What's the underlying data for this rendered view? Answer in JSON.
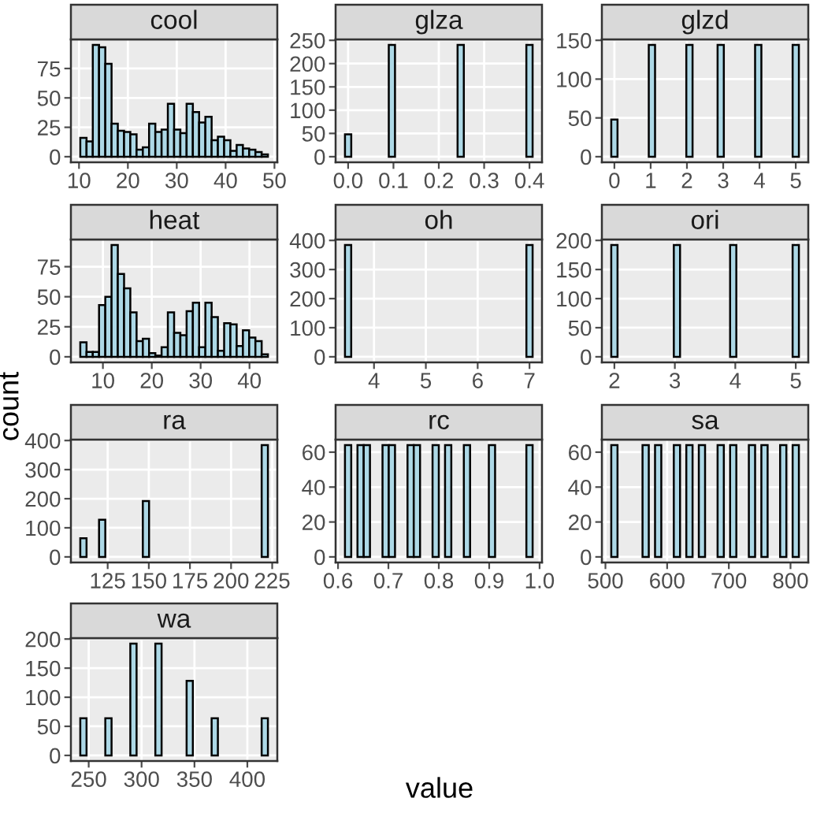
{
  "chart_data": [
    {
      "type": "histogram",
      "title": "cool",
      "color": "#add8e6",
      "grid": true,
      "bins": [
        10.26,
        11.54,
        12.82,
        14.1,
        15.38,
        16.66,
        17.94,
        19.22,
        20.5,
        21.78,
        23.06,
        24.34,
        25.62,
        26.9,
        28.18,
        29.46,
        30.74,
        32.02,
        33.3,
        34.58,
        35.86,
        37.14,
        38.42,
        39.7,
        40.98,
        42.26,
        43.54,
        44.82,
        46.1,
        47.38,
        48.66
      ],
      "values": [
        16,
        13,
        95,
        93,
        79,
        28,
        22,
        21,
        19,
        6,
        8,
        28,
        21,
        23,
        45,
        23,
        20,
        45,
        38,
        29,
        34,
        14,
        17,
        14,
        5,
        10,
        7,
        6,
        4,
        2
      ],
      "xlim": [
        8.34,
        50.58
      ],
      "xticks": [
        10,
        20,
        30,
        40,
        50
      ],
      "ylim": [
        -4.75,
        99.75
      ],
      "yticks": [
        0,
        25,
        50,
        75
      ]
    },
    {
      "type": "histogram",
      "title": "glza",
      "color": "#add8e6",
      "grid": true,
      "bins": [
        -0.0069,
        0.0069,
        0.0207,
        0.0345,
        0.0483,
        0.0621,
        0.0759,
        0.0897,
        0.1034,
        0.1172,
        0.131,
        0.1448,
        0.1586,
        0.1724,
        0.1862,
        0.2,
        0.2138,
        0.2276,
        0.2414,
        0.2552,
        0.269,
        0.2828,
        0.2966,
        0.3103,
        0.3241,
        0.3379,
        0.3517,
        0.3655,
        0.3793,
        0.3931,
        0.4069
      ],
      "values": [
        48,
        0,
        0,
        0,
        0,
        0,
        0,
        240,
        0,
        0,
        0,
        0,
        0,
        0,
        0,
        0,
        0,
        0,
        240,
        0,
        0,
        0,
        0,
        0,
        0,
        0,
        0,
        0,
        0,
        240
      ],
      "xlim": [
        -0.0276,
        0.4276
      ],
      "xticks": [
        {
          "value": 0,
          "label": "0.0"
        },
        0.1,
        0.2,
        0.3,
        0.4
      ],
      "ylim": [
        -12,
        252
      ],
      "yticks": [
        0,
        50,
        100,
        150,
        200,
        250
      ]
    },
    {
      "type": "histogram",
      "title": "glzd",
      "color": "#add8e6",
      "grid": true,
      "bins": [
        -0.086,
        0.086,
        0.259,
        0.431,
        0.603,
        0.776,
        0.948,
        1.121,
        1.293,
        1.466,
        1.638,
        1.81,
        1.983,
        2.155,
        2.328,
        2.5,
        2.672,
        2.845,
        3.017,
        3.19,
        3.362,
        3.534,
        3.707,
        3.879,
        4.052,
        4.224,
        4.397,
        4.569,
        4.741,
        4.914,
        5.086
      ],
      "values": [
        48,
        0,
        0,
        0,
        0,
        0,
        144,
        0,
        0,
        0,
        0,
        0,
        144,
        0,
        0,
        0,
        0,
        144,
        0,
        0,
        0,
        0,
        0,
        144,
        0,
        0,
        0,
        0,
        0,
        144
      ],
      "xlim": [
        -0.345,
        5.345
      ],
      "xticks": [
        0,
        1,
        2,
        3,
        4,
        5
      ],
      "ylim": [
        -7.2,
        151.2
      ],
      "yticks": [
        0,
        50,
        100,
        150
      ]
    },
    {
      "type": "histogram",
      "title": "heat",
      "ylabel": "count",
      "color": "#add8e6",
      "grid": true,
      "bins": [
        5.37,
        6.65,
        7.93,
        9.21,
        10.49,
        11.77,
        13.05,
        14.33,
        15.61,
        16.89,
        18.17,
        19.45,
        20.73,
        22.01,
        23.29,
        24.57,
        25.85,
        27.13,
        28.41,
        29.69,
        30.97,
        32.25,
        33.53,
        34.81,
        36.09,
        37.37,
        38.65,
        39.93,
        41.21,
        42.49,
        43.77
      ],
      "values": [
        12,
        4,
        4,
        43,
        50,
        93,
        69,
        57,
        37,
        13,
        15,
        3,
        1,
        8,
        37,
        20,
        18,
        38,
        45,
        8,
        45,
        33,
        5,
        28,
        27,
        9,
        22,
        16,
        13,
        2
      ],
      "xlim": [
        3.45,
        45.69
      ],
      "xticks": [
        10,
        20,
        30,
        40
      ],
      "ylim": [
        -4.65,
        97.65
      ],
      "yticks": [
        0,
        25,
        50,
        75
      ]
    },
    {
      "type": "histogram",
      "title": "oh",
      "color": "#add8e6",
      "grid": true,
      "bins": [
        3.44,
        3.56,
        3.681,
        3.802,
        3.922,
        4.043,
        4.164,
        4.284,
        4.405,
        4.526,
        4.647,
        4.767,
        4.888,
        5.009,
        5.129,
        5.25,
        5.371,
        5.491,
        5.612,
        5.733,
        5.853,
        5.974,
        6.095,
        6.216,
        6.336,
        6.457,
        6.578,
        6.698,
        6.819,
        6.94,
        7.06
      ],
      "values": [
        384,
        0,
        0,
        0,
        0,
        0,
        0,
        0,
        0,
        0,
        0,
        0,
        0,
        0,
        0,
        0,
        0,
        0,
        0,
        0,
        0,
        0,
        0,
        0,
        0,
        0,
        0,
        0,
        0,
        384
      ],
      "xlim": [
        3.259,
        7.241
      ],
      "xticks": [
        4,
        5,
        6,
        7
      ],
      "ylim": [
        -19.2,
        403.2
      ],
      "yticks": [
        0,
        100,
        200,
        300,
        400
      ]
    },
    {
      "type": "histogram",
      "title": "ori",
      "color": "#add8e6",
      "grid": true,
      "bins": [
        1.948,
        2.052,
        2.155,
        2.259,
        2.362,
        2.466,
        2.569,
        2.672,
        2.776,
        2.879,
        2.983,
        3.086,
        3.19,
        3.293,
        3.397,
        3.5,
        3.603,
        3.707,
        3.81,
        3.914,
        4.017,
        4.121,
        4.224,
        4.328,
        4.431,
        4.534,
        4.638,
        4.741,
        4.845,
        4.948,
        5.052
      ],
      "values": [
        192,
        0,
        0,
        0,
        0,
        0,
        0,
        0,
        0,
        0,
        192,
        0,
        0,
        0,
        0,
        0,
        0,
        0,
        0,
        192,
        0,
        0,
        0,
        0,
        0,
        0,
        0,
        0,
        0,
        192
      ],
      "xlim": [
        1.793,
        5.207
      ],
      "xticks": [
        2,
        3,
        4,
        5
      ],
      "ylim": [
        -9.6,
        201.6
      ],
      "yticks": [
        0,
        50,
        100,
        150,
        200
      ]
    },
    {
      "type": "histogram",
      "title": "ra",
      "color": "#add8e6",
      "grid": true,
      "bins": [
        108.35,
        112.15,
        115.95,
        119.75,
        123.56,
        127.36,
        131.16,
        134.96,
        138.76,
        142.56,
        146.36,
        150.16,
        153.97,
        157.77,
        161.57,
        165.38,
        169.18,
        172.98,
        176.78,
        180.58,
        184.38,
        188.19,
        191.99,
        195.79,
        199.59,
        203.39,
        207.19,
        210.99,
        214.79,
        218.6,
        222.4
      ],
      "values": [
        64,
        0,
        0,
        128,
        0,
        0,
        0,
        0,
        0,
        0,
        192,
        0,
        0,
        0,
        0,
        0,
        0,
        0,
        0,
        0,
        0,
        0,
        0,
        0,
        0,
        0,
        0,
        0,
        0,
        384
      ],
      "xlim": [
        102.65,
        228.1
      ],
      "xticks": [
        125,
        150,
        175,
        200,
        225
      ],
      "ylim": [
        -19.2,
        403.2
      ],
      "yticks": [
        0,
        100,
        200,
        300,
        400
      ]
    },
    {
      "type": "histogram",
      "title": "rc",
      "color": "#add8e6",
      "grid": true,
      "bins": [
        0.6138,
        0.6262,
        0.6386,
        0.651,
        0.6634,
        0.6759,
        0.6883,
        0.7007,
        0.7131,
        0.7255,
        0.7379,
        0.7503,
        0.7628,
        0.7752,
        0.7876,
        0.8,
        0.8124,
        0.8248,
        0.8372,
        0.8497,
        0.8621,
        0.8745,
        0.8869,
        0.8993,
        0.9117,
        0.9241,
        0.9366,
        0.949,
        0.9614,
        0.9738,
        0.9862
      ],
      "values": [
        64,
        0,
        64,
        64,
        0,
        0,
        64,
        64,
        0,
        0,
        64,
        64,
        0,
        0,
        64,
        0,
        64,
        0,
        0,
        64,
        0,
        0,
        0,
        64,
        0,
        0,
        0,
        0,
        0,
        64
      ],
      "xlim": [
        0.5952,
        1.0048
      ],
      "xticks": [
        0.6,
        0.7,
        0.8,
        0.9,
        {
          "value": 1,
          "label": "1.0"
        }
      ],
      "ylim": [
        -3.2,
        67.2
      ],
      "yticks": [
        0,
        20,
        40,
        60
      ]
    },
    {
      "type": "histogram",
      "title": "sa",
      "color": "#add8e6",
      "grid": true,
      "bins": [
        509.43,
        519.57,
        529.71,
        539.84,
        549.98,
        560.12,
        570.26,
        580.4,
        590.53,
        600.67,
        610.81,
        620.95,
        631.09,
        641.22,
        651.36,
        661.5,
        671.64,
        681.78,
        691.91,
        702.05,
        712.19,
        722.33,
        732.47,
        742.6,
        752.74,
        762.88,
        773.02,
        783.16,
        793.29,
        803.43,
        813.57
      ],
      "values": [
        64,
        0,
        0,
        0,
        0,
        64,
        0,
        64,
        0,
        0,
        64,
        0,
        64,
        0,
        64,
        0,
        0,
        64,
        0,
        64,
        0,
        0,
        64,
        0,
        64,
        0,
        0,
        64,
        0,
        64
      ],
      "xlim": [
        494.22,
        828.78
      ],
      "xticks": [
        500,
        600,
        700,
        800
      ],
      "ylim": [
        -3.2,
        67.2
      ],
      "yticks": [
        0,
        20,
        40,
        60
      ]
    },
    {
      "type": "histogram",
      "title": "wa",
      "xlabel": "value",
      "color": "#add8e6",
      "grid": true,
      "bins": [
        242.04,
        247.96,
        253.87,
        259.78,
        265.7,
        271.61,
        277.53,
        283.44,
        289.35,
        295.27,
        301.18,
        307.1,
        313.01,
        318.92,
        324.84,
        330.75,
        336.66,
        342.58,
        348.49,
        354.41,
        360.32,
        366.23,
        372.15,
        378.06,
        383.97,
        389.89,
        395.8,
        401.72,
        407.63,
        413.54,
        419.46
      ],
      "values": [
        64,
        0,
        0,
        0,
        64,
        0,
        0,
        0,
        192,
        0,
        0,
        0,
        192,
        0,
        0,
        0,
        0,
        128,
        0,
        0,
        0,
        64,
        0,
        0,
        0,
        0,
        0,
        0,
        0,
        64
      ],
      "xlim": [
        233.17,
        428.33
      ],
      "xticks": [
        250,
        300,
        350,
        400
      ],
      "ylim": [
        -9.6,
        201.6
      ],
      "yticks": [
        0,
        50,
        100,
        150,
        200
      ]
    }
  ]
}
